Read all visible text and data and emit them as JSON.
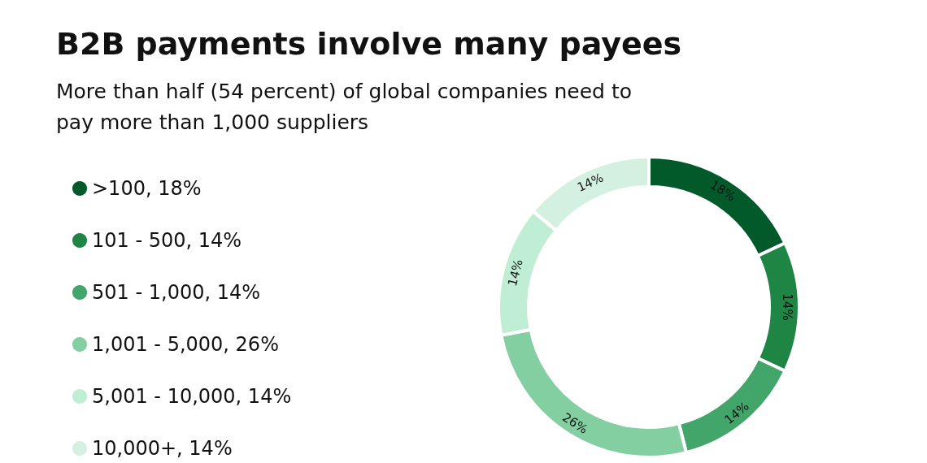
{
  "chart_data": {
    "type": "donut",
    "title": "B2B payments involve many payees",
    "subtitle": "More than half (54 percent) of global companies need to pay more than 1,000 suppliers",
    "categories": [
      ">100",
      "101 - 500",
      "501 - 1,000",
      "1,001 - 5,000",
      "5,001 - 10,000",
      "10,000+"
    ],
    "values": [
      18,
      14,
      14,
      26,
      14,
      14
    ],
    "value_labels": [
      "18%",
      "14%",
      "14%",
      "26%",
      "14%",
      "14%"
    ],
    "colors": [
      "#02592a",
      "#1e8545",
      "#42a56a",
      "#84cfa1",
      "#c0eed4",
      "#d4f0e0"
    ],
    "legend": "left"
  }
}
